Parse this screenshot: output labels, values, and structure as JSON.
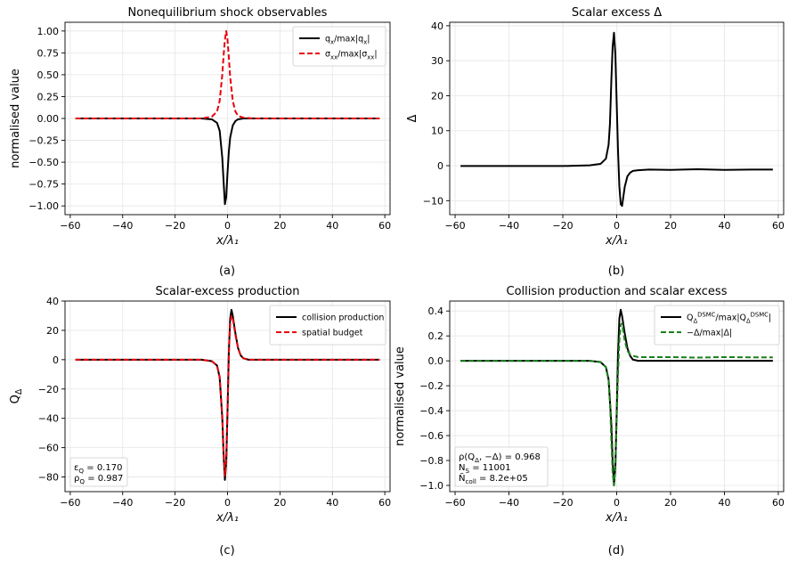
{
  "chart_data": [
    {
      "type": "line",
      "panel": "(a)",
      "title": "Nonequilibrium shock observables",
      "xlabel": "x/λ₁",
      "ylabel": "normalised value",
      "xlim": [
        -62,
        62
      ],
      "ylim": [
        -1.1,
        1.1
      ],
      "xticks": [
        -60,
        -40,
        -20,
        0,
        20,
        40,
        60
      ],
      "xtick_labels": [
        "−60",
        "−40",
        "−20",
        "0",
        "20",
        "40",
        "60"
      ],
      "yticks": [
        -1.0,
        -0.75,
        -0.5,
        -0.25,
        0.0,
        0.25,
        0.5,
        0.75,
        1.0
      ],
      "ytick_labels": [
        "−1.00",
        "−0.75",
        "−0.50",
        "−0.25",
        "0.00",
        "0.25",
        "0.50",
        "0.75",
        "1.00"
      ],
      "grid": true,
      "legend": "top-right",
      "series": [
        {
          "name": "q_x/max|q_x|",
          "color": "#000000",
          "dash": "solid",
          "x": [
            -58,
            -20,
            -10,
            -6,
            -4,
            -3,
            -2,
            -1.5,
            -1,
            -0.5,
            0,
            0.5,
            1,
            2,
            3,
            4,
            6,
            10,
            20,
            58
          ],
          "y": [
            0,
            0,
            0,
            -0.01,
            -0.05,
            -0.14,
            -0.45,
            -0.72,
            -0.98,
            -0.9,
            -0.62,
            -0.38,
            -0.22,
            -0.08,
            -0.03,
            -0.01,
            0,
            0,
            0,
            0
          ]
        },
        {
          "name": "σ_xx/max|σ_xx|",
          "color": "#e8000b",
          "dash": "dashed",
          "x": [
            -58,
            -20,
            -10,
            -6,
            -4,
            -3,
            -2,
            -1.5,
            -1,
            -0.5,
            0,
            0.5,
            1,
            2,
            3,
            4,
            6,
            10,
            20,
            58
          ],
          "y": [
            0,
            0,
            0,
            0.02,
            0.08,
            0.2,
            0.5,
            0.72,
            0.9,
            1.0,
            0.9,
            0.7,
            0.48,
            0.2,
            0.08,
            0.03,
            0.01,
            0,
            0,
            0
          ]
        }
      ]
    },
    {
      "type": "line",
      "panel": "(b)",
      "title": "Scalar excess Δ",
      "xlabel": "x/λ₁",
      "ylabel": "Δ",
      "xlim": [
        -62,
        62
      ],
      "ylim": [
        -14,
        41
      ],
      "xticks": [
        -60,
        -40,
        -20,
        0,
        20,
        40,
        60
      ],
      "xtick_labels": [
        "−60",
        "−40",
        "−20",
        "0",
        "20",
        "40",
        "60"
      ],
      "yticks": [
        -10,
        0,
        10,
        20,
        30,
        40
      ],
      "ytick_labels": [
        "−10",
        "0",
        "10",
        "20",
        "30",
        "40"
      ],
      "grid": true,
      "series": [
        {
          "color": "#000000",
          "dash": "solid",
          "x": [
            -58,
            -20,
            -10,
            -6,
            -4,
            -3,
            -2.5,
            -2,
            -1.5,
            -1,
            -0.5,
            0,
            0.5,
            1,
            1.5,
            2,
            3,
            4,
            5,
            6,
            8,
            12,
            20,
            30,
            40,
            50,
            58
          ],
          "y": [
            -0.1,
            -0.1,
            0.1,
            0.5,
            2,
            6,
            12,
            24,
            34,
            38,
            32,
            18,
            4,
            -6,
            -11,
            -11.5,
            -6,
            -3,
            -2,
            -1.5,
            -1.3,
            -1.1,
            -1.2,
            -1.0,
            -1.2,
            -1.1,
            -1.1
          ]
        }
      ]
    },
    {
      "type": "line",
      "panel": "(c)",
      "title": "Scalar-excess production",
      "xlabel": "x/λ₁",
      "ylabel": "Q_Δ",
      "xlim": [
        -62,
        62
      ],
      "ylim": [
        -90,
        40
      ],
      "xticks": [
        -60,
        -40,
        -20,
        0,
        20,
        40,
        60
      ],
      "xtick_labels": [
        "−60",
        "−40",
        "−20",
        "0",
        "20",
        "40",
        "60"
      ],
      "yticks": [
        -80,
        -60,
        -40,
        -20,
        0,
        20,
        40
      ],
      "ytick_labels": [
        "−80",
        "−60",
        "−40",
        "−20",
        "0",
        "20",
        "40"
      ],
      "grid": true,
      "legend": "top-right",
      "annotation": [
        "ε_Q = 0.170",
        "ρ_Q = 0.987"
      ],
      "series": [
        {
          "name": "collision production",
          "color": "#000000",
          "dash": "solid",
          "x": [
            -58,
            -20,
            -10,
            -6,
            -4,
            -3,
            -2,
            -1.5,
            -1,
            -0.5,
            0,
            0.5,
            1,
            1.5,
            2,
            3,
            4,
            5,
            6,
            8,
            12,
            20,
            30,
            40,
            50,
            58
          ],
          "y": [
            0,
            0,
            0,
            -1,
            -4,
            -12,
            -40,
            -65,
            -82,
            -70,
            -35,
            5,
            28,
            34,
            30,
            18,
            8,
            3,
            1,
            0,
            0,
            0,
            0,
            0,
            0,
            0
          ]
        },
        {
          "name": "spatial budget",
          "color": "#e8000b",
          "dash": "dashed",
          "x": [
            -58,
            -20,
            -10,
            -6,
            -4,
            -3,
            -2,
            -1.5,
            -1,
            -0.5,
            0,
            0.5,
            1,
            1.5,
            2,
            3,
            4,
            5,
            6,
            8,
            12,
            20,
            30,
            40,
            50,
            58
          ],
          "y": [
            0,
            0,
            0,
            -1,
            -4,
            -12,
            -38,
            -62,
            -79,
            -68,
            -34,
            4,
            25,
            30,
            28,
            17,
            8,
            3,
            1,
            0,
            0,
            0,
            0,
            0,
            0,
            0
          ]
        }
      ]
    },
    {
      "type": "line",
      "panel": "(d)",
      "title": "Collision production and scalar excess",
      "xlabel": "x/λ₁",
      "ylabel": "normalised value",
      "xlim": [
        -62,
        62
      ],
      "ylim": [
        -1.05,
        0.48
      ],
      "xticks": [
        -60,
        -40,
        -20,
        0,
        20,
        40,
        60
      ],
      "xtick_labels": [
        "−60",
        "−40",
        "−20",
        "0",
        "20",
        "40",
        "60"
      ],
      "yticks": [
        -1.0,
        -0.8,
        -0.6,
        -0.4,
        -0.2,
        0.0,
        0.2,
        0.4
      ],
      "ytick_labels": [
        "−1.0",
        "−0.8",
        "−0.6",
        "−0.4",
        "−0.2",
        "0.0",
        "0.2",
        "0.4"
      ],
      "grid": true,
      "legend": "top-right",
      "annotation": [
        "ρ(Q_Δ, −Δ) = 0.968",
        "N_S = 11001",
        "Ñ_coll = 8.2e+05"
      ],
      "series": [
        {
          "name": "Q_Δ^DSMC/max|Q_Δ^DSMC|",
          "color": "#000000",
          "dash": "solid",
          "x": [
            -58,
            -20,
            -10,
            -6,
            -4,
            -3,
            -2,
            -1.5,
            -1,
            -0.5,
            0,
            0.5,
            1,
            1.5,
            2,
            3,
            4,
            5,
            6,
            8,
            12,
            20,
            30,
            40,
            50,
            58
          ],
          "y": [
            0,
            0,
            0,
            -0.01,
            -0.05,
            -0.15,
            -0.5,
            -0.8,
            -1.0,
            -0.85,
            -0.42,
            0.06,
            0.34,
            0.41,
            0.36,
            0.22,
            0.1,
            0.04,
            0.01,
            0,
            0,
            0,
            0,
            0,
            0,
            0
          ]
        },
        {
          "name": "−Δ/max|Δ|",
          "color": "#1a7f1a",
          "dash": "dashed",
          "x": [
            -58,
            -20,
            -10,
            -6,
            -4,
            -3,
            -2.5,
            -2,
            -1.5,
            -1,
            -0.5,
            0,
            0.5,
            1,
            1.5,
            2,
            3,
            4,
            5,
            6,
            8,
            12,
            20,
            30,
            40,
            50,
            58
          ],
          "y": [
            0,
            0,
            0,
            -0.01,
            -0.05,
            -0.16,
            -0.32,
            -0.63,
            -0.9,
            -1.0,
            -0.84,
            -0.47,
            -0.1,
            0.16,
            0.29,
            0.3,
            0.16,
            0.08,
            0.05,
            0.04,
            0.03,
            0.03,
            0.03,
            0.026,
            0.03,
            0.028,
            0.028
          ]
        }
      ]
    }
  ]
}
